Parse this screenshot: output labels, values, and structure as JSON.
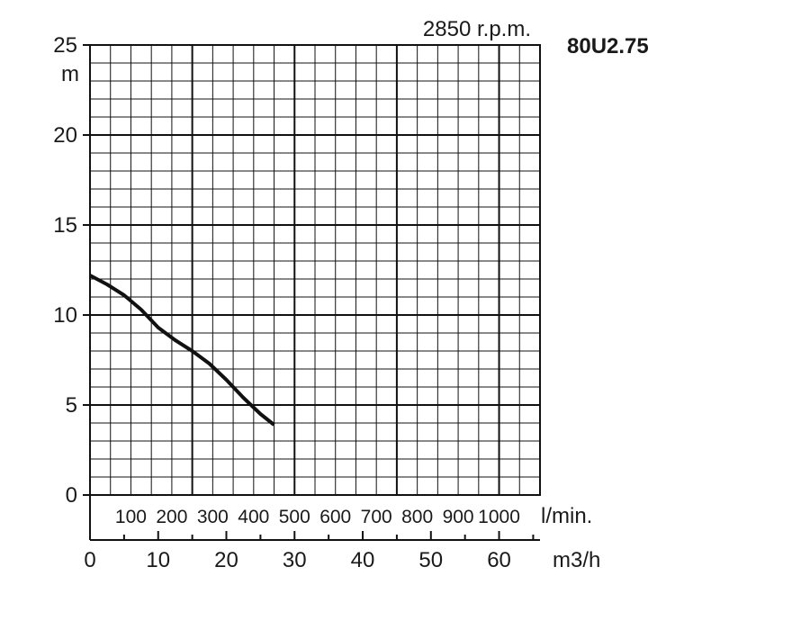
{
  "chart_data": {
    "type": "line",
    "speed_label": "2850 r.p.m.",
    "model": "80U2.75",
    "ylabel": "m",
    "ylim": [
      0,
      25
    ],
    "yticks": [
      0,
      5,
      10,
      15,
      20,
      25
    ],
    "grid": true,
    "x_lmin": {
      "unit": "l/min.",
      "range": [
        0,
        1100
      ],
      "ticks": [
        100,
        200,
        300,
        400,
        500,
        600,
        700,
        800,
        900,
        1000
      ]
    },
    "x_m3h": {
      "unit": "m3/h",
      "range": [
        0,
        66
      ],
      "ticks": [
        0,
        10,
        20,
        30,
        40,
        50,
        60
      ]
    },
    "series": [
      {
        "x_unit": "m3/h",
        "color": "#111111",
        "points": [
          [
            0,
            12.2
          ],
          [
            2.5,
            11.7
          ],
          [
            5,
            11.1
          ],
          [
            7.5,
            10.3
          ],
          [
            10,
            9.3
          ],
          [
            12.5,
            8.6
          ],
          [
            15,
            8.0
          ],
          [
            17.5,
            7.3
          ],
          [
            20,
            6.4
          ],
          [
            22.5,
            5.4
          ],
          [
            25,
            4.5
          ],
          [
            27,
            3.9
          ]
        ]
      }
    ]
  }
}
